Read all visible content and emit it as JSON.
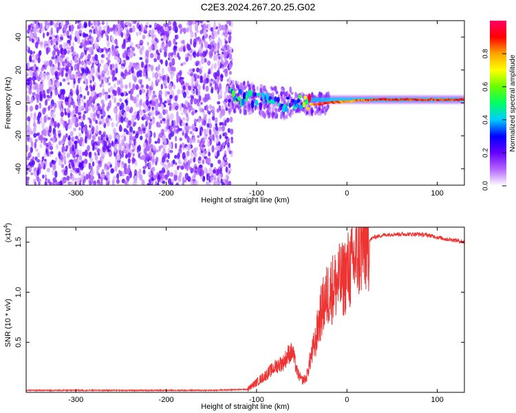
{
  "title": "C2E3.2024.267.20.25.G02",
  "chart_data": [
    {
      "type": "heatmap",
      "xlabel": "Height of straight line (km)",
      "ylabel": "Frequency (Hz)",
      "xlim": [
        -355,
        130
      ],
      "ylim": [
        -50,
        50
      ],
      "x_ticks": [
        "-300",
        "-200",
        "-100",
        "0",
        "100"
      ],
      "x_tick_values": [
        -300,
        -200,
        -100,
        0,
        100
      ],
      "y_ticks": [
        "-40",
        "-20",
        "0",
        "20",
        "40"
      ],
      "y_tick_values": [
        -40,
        -20,
        0,
        20,
        40
      ],
      "noise_region_x": [
        -355,
        -130
      ],
      "signal_track": [
        {
          "x": -130,
          "f": 4,
          "a": 0.5
        },
        {
          "x": -110,
          "f": 3,
          "a": 0.45
        },
        {
          "x": -90,
          "f": 1,
          "a": 0.45
        },
        {
          "x": -70,
          "f": 0,
          "a": 0.4
        },
        {
          "x": -50,
          "f": 0,
          "a": 0.45
        },
        {
          "x": -35,
          "f": -1,
          "a": 0.95
        },
        {
          "x": -20,
          "f": 0,
          "a": 0.95
        },
        {
          "x": 0,
          "f": 1,
          "a": 0.85
        },
        {
          "x": 30,
          "f": 2,
          "a": 0.95
        },
        {
          "x": 60,
          "f": 2,
          "a": 0.95
        },
        {
          "x": 95,
          "f": 2,
          "a": 0.95
        },
        {
          "x": 130,
          "f": 2,
          "a": 0.95
        }
      ],
      "colorbar": {
        "label": "Normalized spectral amplitude",
        "range": [
          0,
          1
        ],
        "ticks": [
          "0.0",
          "0.2",
          "0.4",
          "0.6",
          "0.8"
        ],
        "tick_values": [
          0.0,
          0.2,
          0.4,
          0.6,
          0.8
        ],
        "colors": [
          "#ffffff",
          "#b366ff",
          "#6600ff",
          "#0000ff",
          "#00ccff",
          "#00ff66",
          "#66ff00",
          "#ffff00",
          "#ffa500",
          "#ff0000",
          "#ff0066"
        ]
      }
    },
    {
      "type": "line",
      "xlabel": "Height of straight line (km)",
      "ylabel": "SNR (10 * v/v)",
      "multiplier_label": "(x10",
      "multiplier_exp": "4",
      "xlim": [
        -355,
        130
      ],
      "ylim": [
        0,
        1.65
      ],
      "x_ticks": [
        "-300",
        "-200",
        "-100",
        "0",
        "100"
      ],
      "x_tick_values": [
        -300,
        -200,
        -100,
        0,
        100
      ],
      "y_ticks": [
        "0.5",
        "1.0",
        "1.5"
      ],
      "y_tick_values": [
        0.5,
        1.0,
        1.5
      ],
      "line_color": "#ee3333",
      "series": [
        {
          "x": [
            -355,
            -300,
            -250,
            -200,
            -150,
            -110,
            -100,
            -90,
            -80,
            -75,
            -70,
            -65,
            -60,
            -55,
            -50,
            -45,
            -40,
            -35,
            -30,
            -25,
            -20,
            -15,
            -10,
            -5,
            0,
            5,
            10,
            15,
            20,
            25,
            30,
            40,
            50,
            60,
            70,
            80,
            90,
            100,
            110,
            120,
            130
          ],
          "y": [
            0.02,
            0.02,
            0.02,
            0.02,
            0.02,
            0.03,
            0.1,
            0.17,
            0.25,
            0.28,
            0.3,
            0.38,
            0.4,
            0.2,
            0.12,
            0.14,
            0.35,
            0.5,
            0.75,
            0.9,
            1.0,
            1.05,
            1.1,
            1.12,
            1.2,
            1.25,
            1.35,
            1.42,
            1.48,
            1.52,
            1.55,
            1.57,
            1.58,
            1.58,
            1.58,
            1.58,
            1.57,
            1.55,
            1.53,
            1.52,
            1.5
          ]
        }
      ]
    }
  ]
}
